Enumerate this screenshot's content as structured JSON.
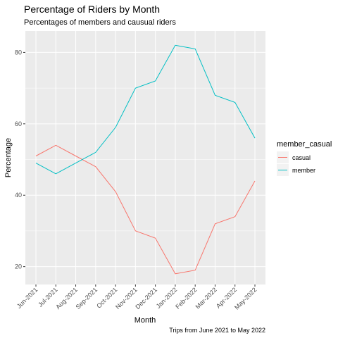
{
  "chart_data": {
    "type": "line",
    "title": "Percentage of Riders by Month",
    "subtitle": "Percentages of members and causual riders",
    "xlabel": "Month",
    "ylabel": "Percentage",
    "caption": "Trips from June 2021 to May 2022",
    "categories": [
      "Jun-2021",
      "Jul-2021",
      "Aug-2021",
      "Sep-2021",
      "Oct-2021",
      "Nov-2021",
      "Dec-2021",
      "Jan-2022",
      "Feb-2022",
      "Mar-2022",
      "Apr-2022",
      "May-2022"
    ],
    "ylim": [
      15,
      86
    ],
    "yticks": [
      20,
      40,
      60,
      80
    ],
    "grid": true,
    "legend": {
      "title": "member_casual",
      "placement": "right"
    },
    "series": [
      {
        "name": "casual",
        "color": "#F8766D",
        "values": [
          51,
          54,
          51,
          48,
          41,
          30,
          28,
          18,
          19,
          32,
          34,
          44
        ]
      },
      {
        "name": "member",
        "color": "#00BFC4",
        "values": [
          49,
          46,
          49,
          52,
          59,
          70,
          72,
          82,
          81,
          68,
          66,
          56
        ]
      }
    ]
  }
}
